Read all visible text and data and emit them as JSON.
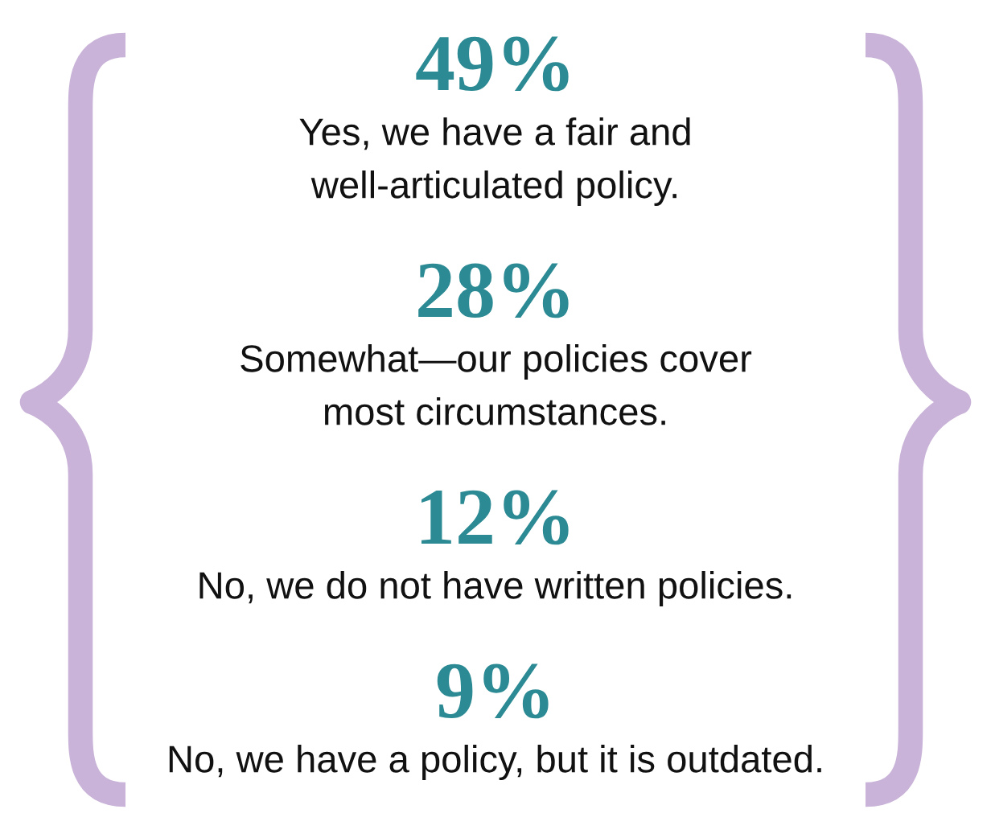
{
  "chart_data": {
    "type": "other",
    "categories": [
      "Yes, we have a fair and\nwell-articulated policy.",
      "Somewhat—our policies cover\nmost circumstances.",
      "No, we do not have written policies.",
      "No, we have a policy, but it is outdated."
    ],
    "values": [
      49,
      28,
      12,
      9
    ],
    "value_labels": [
      "49%",
      "28%",
      "12%",
      "9%"
    ],
    "color": "#2b8a93"
  }
}
